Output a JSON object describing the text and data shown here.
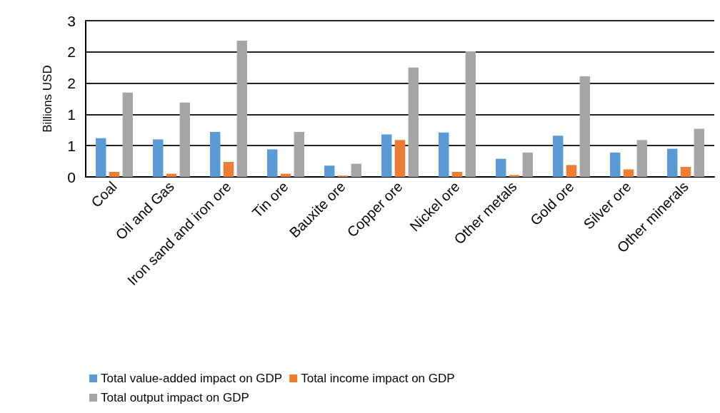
{
  "chart_data": {
    "type": "bar",
    "ylabel": "Billions USD",
    "categories": [
      "Coal",
      "Oil and Gas",
      "Iron sand and iron ore",
      "Tin ore",
      "Bauxite ore",
      "Copper ore",
      "Nickel ore",
      "Other metals",
      "Gold ore",
      "Silver ore",
      "Other minerals"
    ],
    "series": [
      {
        "name": "Total value-added impact on GDP",
        "color": "#5b9bd5",
        "values": [
          0.62,
          0.6,
          0.72,
          0.44,
          0.18,
          0.68,
          0.71,
          0.29,
          0.66,
          0.39,
          0.45
        ]
      },
      {
        "name": "Total income impact on GDP",
        "color": "#ed7d31",
        "values": [
          0.08,
          0.05,
          0.24,
          0.05,
          0.02,
          0.59,
          0.08,
          0.03,
          0.19,
          0.12,
          0.16
        ]
      },
      {
        "name": "Total output impact on GDP",
        "color": "#a5a5a5",
        "values": [
          1.35,
          1.19,
          2.18,
          0.72,
          0.21,
          1.75,
          2.01,
          0.39,
          1.61,
          0.59,
          0.77
        ]
      }
    ],
    "ylim": [
      0,
      2.5
    ],
    "yticks": [
      0,
      {
        "value": 0.5,
        "label": "1"
      },
      1,
      {
        "value": 1.5,
        "label": "2"
      },
      2,
      {
        "value": 2.5,
        "label": "3"
      }
    ],
    "grid": "y",
    "legend": "bottom"
  }
}
